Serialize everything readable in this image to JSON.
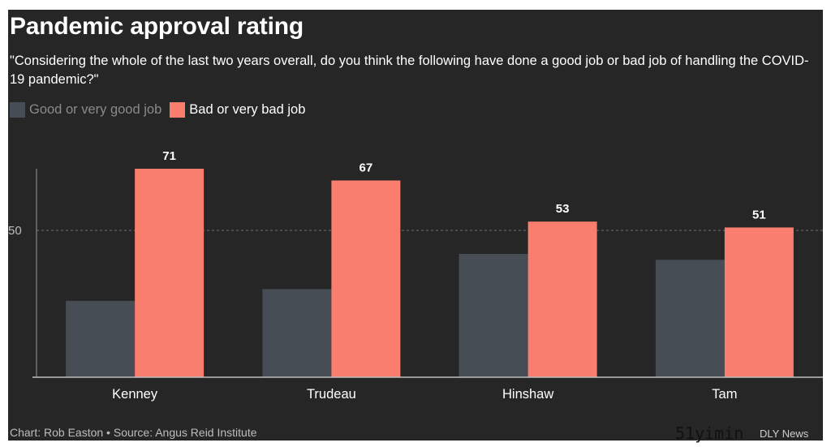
{
  "header": {
    "title": "Pandemic approval rating",
    "subtitle": "\"Considering the whole of the last two years overall, do you think the following have done a good job or bad job of handling the COVID-19 pandemic?\""
  },
  "legend": {
    "items": [
      {
        "label": "Good or very good job",
        "color": "#474d54"
      },
      {
        "label": "Bad or very bad job",
        "color": "#fa7e6e"
      }
    ]
  },
  "footer": {
    "source": "Chart: Rob Easton • Source: Angus Reid Institute"
  },
  "watermark": {
    "text": "51yimin",
    "brand": "DLY News"
  },
  "chart_data": {
    "type": "bar",
    "categories": [
      "Kenney",
      "Trudeau",
      "Hinshaw",
      "Tam"
    ],
    "series": [
      {
        "name": "Good or very good job",
        "values": [
          26,
          30,
          42,
          40
        ],
        "color": "#474d54",
        "labeled": false
      },
      {
        "name": "Bad or very bad job",
        "values": [
          71,
          67,
          53,
          51
        ],
        "color": "#fa7e6e",
        "labeled": true
      }
    ],
    "title": "Pandemic approval rating",
    "xlabel": "",
    "ylabel": "",
    "ylim": [
      0,
      71
    ],
    "yticks": [
      50
    ],
    "gridlines": "reference line at 50 (dotted)",
    "legend": "top-left"
  }
}
